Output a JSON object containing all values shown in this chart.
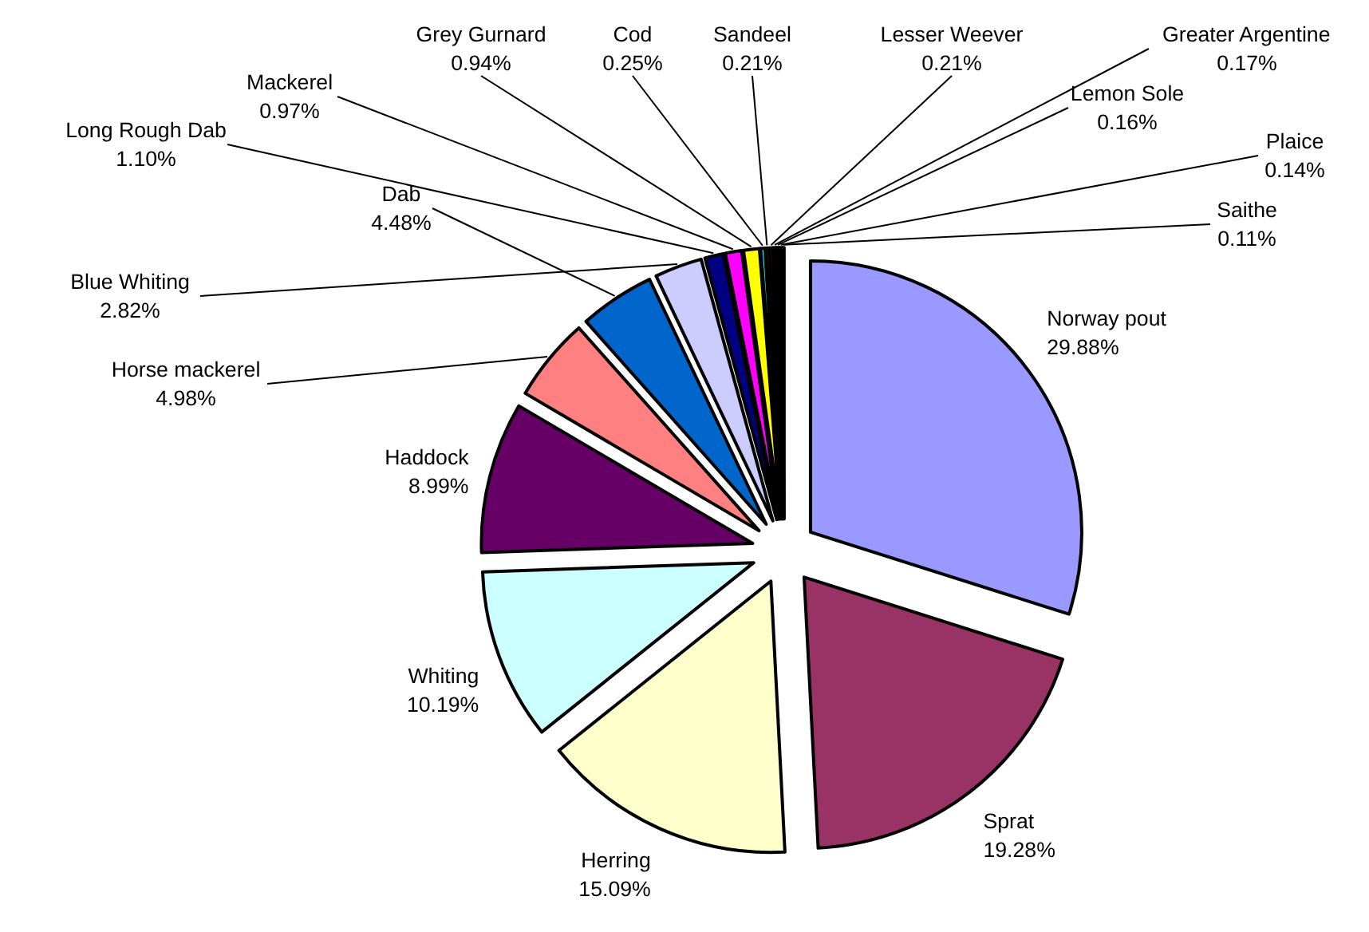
{
  "chart_data": {
    "type": "pie",
    "categories": [
      "Norway pout",
      "Sprat",
      "Herring",
      "Whiting",
      "Haddock",
      "Horse mackerel",
      "Dab",
      "Blue Whiting",
      "Long Rough Dab",
      "Mackerel",
      "Grey Gurnard",
      "Cod",
      "Sandeel",
      "Lesser Weever",
      "Greater Argentine",
      "Lemon Sole",
      "Plaice",
      "Saithe"
    ],
    "values": [
      29.88,
      19.28,
      15.09,
      10.19,
      8.99,
      4.98,
      4.48,
      2.82,
      1.1,
      0.97,
      0.94,
      0.25,
      0.21,
      0.21,
      0.17,
      0.16,
      0.14,
      0.11
    ],
    "value_labels": [
      "29.88%",
      "19.28%",
      "15.09%",
      "10.19%",
      "8.99%",
      "4.98%",
      "4.48%",
      "2.82%",
      "1.10%",
      "0.97%",
      "0.94%",
      "0.25%",
      "0.21%",
      "0.21%",
      "0.17%",
      "0.16%",
      "0.14%",
      "0.11%"
    ],
    "colors": [
      "#9999ff",
      "#993366",
      "#ffffcc",
      "#ccffff",
      "#660066",
      "#ff8080",
      "#0066cc",
      "#ccccff",
      "#000080",
      "#ff00ff",
      "#ffff00",
      "#00ffff",
      "#800080",
      "#800000",
      "#008080",
      "#0000ff",
      "#00ccff",
      "#000000"
    ],
    "legend": false
  }
}
